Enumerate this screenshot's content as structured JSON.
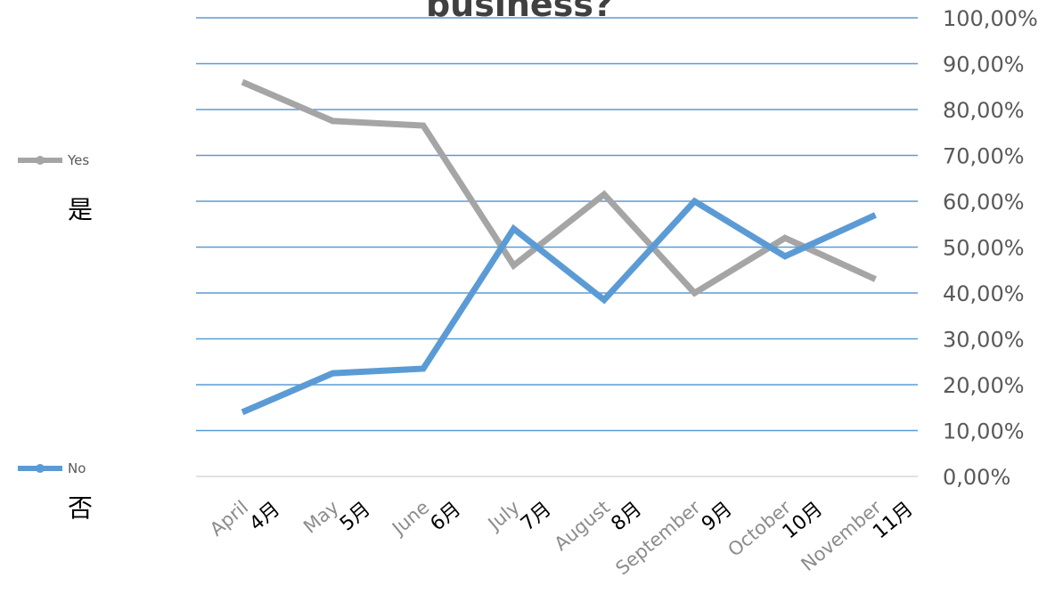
{
  "chart_data": {
    "type": "line",
    "title": "business?",
    "categories": [
      "April",
      "May",
      "June",
      "July",
      "August",
      "September",
      "October",
      "November"
    ],
    "categories_cn": [
      "4月",
      "5月",
      "6月",
      "7月",
      "8月",
      "9月",
      "10月",
      "11月"
    ],
    "series": [
      {
        "name": "Yes",
        "name_cn": "是",
        "color": "#a5a5a5",
        "values": [
          86.0,
          77.5,
          76.5,
          46.0,
          61.5,
          40.0,
          52.0,
          43.0
        ]
      },
      {
        "name": "No",
        "name_cn": "否",
        "color": "#5b9bd5",
        "values": [
          14.0,
          22.5,
          23.5,
          54.0,
          38.5,
          60.0,
          48.0,
          57.0
        ]
      }
    ],
    "y_ticks": [
      "0,00%",
      "10,00%",
      "20,00%",
      "30,00%",
      "40,00%",
      "50,00%",
      "60,00%",
      "70,00%",
      "80,00%",
      "90,00%",
      "100,00%"
    ],
    "ylim": [
      0,
      100
    ],
    "y_axis_side": "right",
    "grid": true,
    "grid_color": "#5b9bd5",
    "legend_position": "left"
  }
}
